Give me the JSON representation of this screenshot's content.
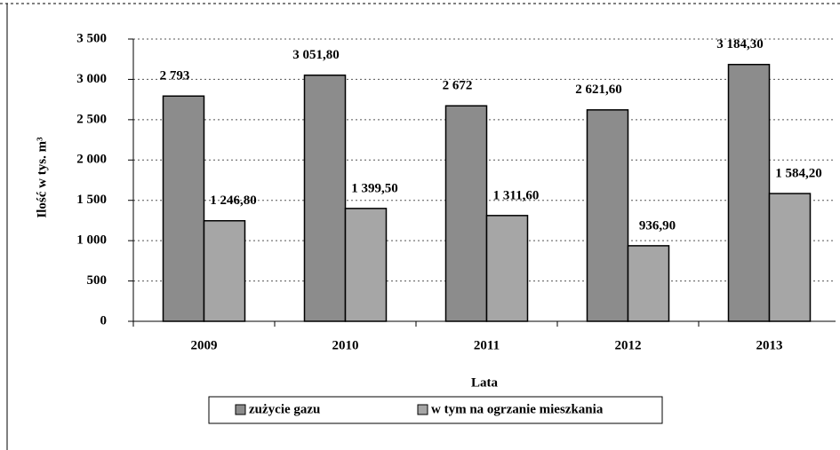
{
  "chart_data": {
    "type": "bar",
    "y_axis_label": "Ilość w tys. m³",
    "x_axis_label": "Lata",
    "categories": [
      "2009",
      "2010",
      "2011",
      "2012",
      "2013"
    ],
    "series": [
      {
        "name": "zużycie gazu",
        "color": "#8c8c8c",
        "values": [
          2793,
          3051.8,
          2672,
          2621.6,
          3184.3
        ],
        "value_labels": [
          "2 793",
          "3 051,80",
          "2 672",
          "2 621,60",
          "3 184,30"
        ]
      },
      {
        "name": "w tym na ogrzanie mieszkania",
        "color": "#a6a6a6",
        "values": [
          1246.8,
          1399.5,
          1311.6,
          936.9,
          1584.2
        ],
        "value_labels": [
          "1 246,80",
          "1 399,50",
          "1 311,60",
          "936,90",
          "1 584,20"
        ]
      }
    ],
    "ylim": [
      0,
      3500
    ],
    "yticks": [
      0,
      500,
      {
        "value": 1000,
        "label": "1 000"
      },
      {
        "value": 1500,
        "label": "1 500"
      },
      {
        "value": 2000,
        "label": "2 000"
      },
      {
        "value": 2500,
        "label": "2 500"
      },
      {
        "value": 3000,
        "label": "3 000"
      },
      {
        "value": 3500,
        "label": "3 500"
      }
    ],
    "grid": true,
    "legend": "bottom"
  }
}
